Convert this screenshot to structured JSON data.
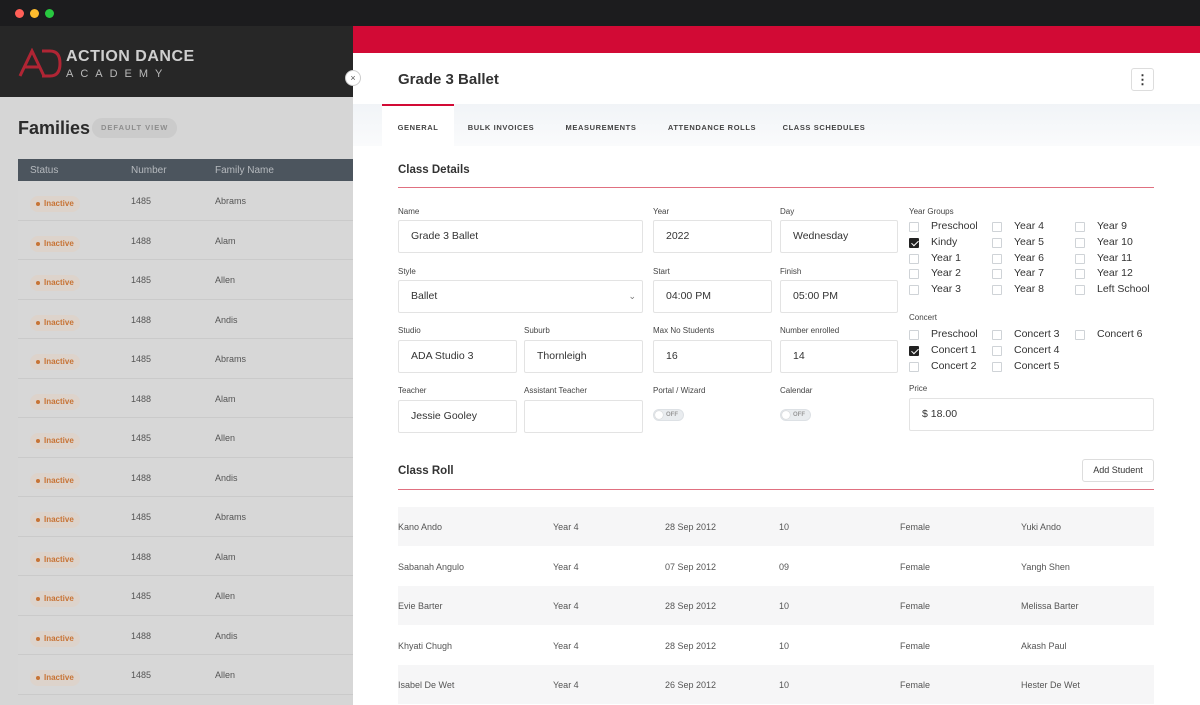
{
  "window": {
    "controls": [
      "close",
      "minimize",
      "maximize"
    ]
  },
  "brand": {
    "name": "ACTION DANCE",
    "subname": "ACADEMY",
    "accent": "#d20a35"
  },
  "families": {
    "title": "Families",
    "view_label": "DEFAULT VIEW",
    "columns": [
      "Status",
      "Number",
      "Family Name"
    ],
    "rows": [
      {
        "status": "Inactive",
        "number": "1485",
        "name": "Abrams"
      },
      {
        "status": "Inactive",
        "number": "1488",
        "name": "Alam"
      },
      {
        "status": "Inactive",
        "number": "1485",
        "name": "Allen"
      },
      {
        "status": "Inactive",
        "number": "1488",
        "name": "Andis"
      },
      {
        "status": "Inactive",
        "number": "1485",
        "name": "Abrams"
      },
      {
        "status": "Inactive",
        "number": "1488",
        "name": "Alam"
      },
      {
        "status": "Inactive",
        "number": "1485",
        "name": "Allen"
      },
      {
        "status": "Inactive",
        "number": "1488",
        "name": "Andis"
      },
      {
        "status": "Inactive",
        "number": "1485",
        "name": "Abrams"
      },
      {
        "status": "Inactive",
        "number": "1488",
        "name": "Alam"
      },
      {
        "status": "Inactive",
        "number": "1485",
        "name": "Allen"
      },
      {
        "status": "Inactive",
        "number": "1488",
        "name": "Andis"
      },
      {
        "status": "Inactive",
        "number": "1485",
        "name": "Allen"
      }
    ]
  },
  "panel": {
    "close_icon": "×",
    "title": "Grade 3 Ballet",
    "menu_icon": "⋮",
    "tabs": [
      "GENERAL",
      "BULK INVOICES",
      "MEASUREMENTS",
      "ATTENDANCE ROLLS",
      "CLASS SCHEDULES"
    ],
    "active_tab": "GENERAL"
  },
  "class_details": {
    "title": "Class Details",
    "fields": {
      "name": {
        "label": "Name",
        "value": "Grade 3 Ballet"
      },
      "year": {
        "label": "Year",
        "value": "2022"
      },
      "day": {
        "label": "Day",
        "value": "Wednesday"
      },
      "style": {
        "label": "Style",
        "value": "Ballet"
      },
      "start": {
        "label": "Start",
        "value": "04:00 PM"
      },
      "finish": {
        "label": "Finish",
        "value": "05:00 PM"
      },
      "studio": {
        "label": "Studio",
        "value": "ADA Studio 3"
      },
      "suburb": {
        "label": "Suburb",
        "value": "Thornleigh"
      },
      "max_students": {
        "label": "Max No Students",
        "value": "16"
      },
      "number_enrolled": {
        "label": "Number enrolled",
        "value": "14"
      },
      "teacher": {
        "label": "Teacher",
        "value": "Jessie Gooley"
      },
      "assistant_teacher": {
        "label": "Assistant Teacher",
        "value": ""
      },
      "portal": {
        "label": "Portal / Wizard",
        "state": "OFF"
      },
      "calendar": {
        "label": "Calendar",
        "state": "OFF"
      },
      "price": {
        "label": "Price",
        "value": "$ 18.00"
      }
    },
    "year_groups": {
      "label": "Year Groups",
      "options": [
        {
          "label": "Preschool",
          "checked": false
        },
        {
          "label": "Kindy",
          "checked": true
        },
        {
          "label": "Year 1",
          "checked": false
        },
        {
          "label": "Year 2",
          "checked": false
        },
        {
          "label": "Year 3",
          "checked": false
        },
        {
          "label": "Year 4",
          "checked": false
        },
        {
          "label": "Year 5",
          "checked": false
        },
        {
          "label": "Year 6",
          "checked": false
        },
        {
          "label": "Year 7",
          "checked": false
        },
        {
          "label": "Year 8",
          "checked": false
        },
        {
          "label": "Year 9",
          "checked": false
        },
        {
          "label": "Year 10",
          "checked": false
        },
        {
          "label": "Year 11",
          "checked": false
        },
        {
          "label": "Year 12",
          "checked": false
        },
        {
          "label": "Left School",
          "checked": false
        }
      ]
    },
    "concert": {
      "label": "Concert",
      "options": [
        {
          "label": "Preschool",
          "checked": false
        },
        {
          "label": "Concert 1",
          "checked": true
        },
        {
          "label": "Concert 2",
          "checked": false
        },
        {
          "label": "Concert 3",
          "checked": false
        },
        {
          "label": "Concert 4",
          "checked": false
        },
        {
          "label": "Concert 5",
          "checked": false
        },
        {
          "label": "Concert 6",
          "checked": false
        }
      ]
    }
  },
  "class_roll": {
    "title": "Class Roll",
    "add_label": "Add Student",
    "rows": [
      {
        "name": "Kano Ando",
        "year": "Year 4",
        "dob": "28 Sep 2012",
        "age": "10",
        "gender": "Female",
        "parent": "Yuki Ando"
      },
      {
        "name": "Sabanah Angulo",
        "year": "Year 4",
        "dob": "07 Sep 2012",
        "age": "09",
        "gender": "Female",
        "parent": "Yangh Shen"
      },
      {
        "name": "Evie Barter",
        "year": "Year 4",
        "dob": "28 Sep 2012",
        "age": "10",
        "gender": "Female",
        "parent": "Melissa Barter"
      },
      {
        "name": "Khyati Chugh",
        "year": "Year 4",
        "dob": "28 Sep 2012",
        "age": "10",
        "gender": "Female",
        "parent": "Akash Paul"
      },
      {
        "name": "Isabel De Wet",
        "year": "Year 4",
        "dob": "26 Sep 2012",
        "age": "10",
        "gender": "Female",
        "parent": "Hester De Wet"
      }
    ]
  }
}
